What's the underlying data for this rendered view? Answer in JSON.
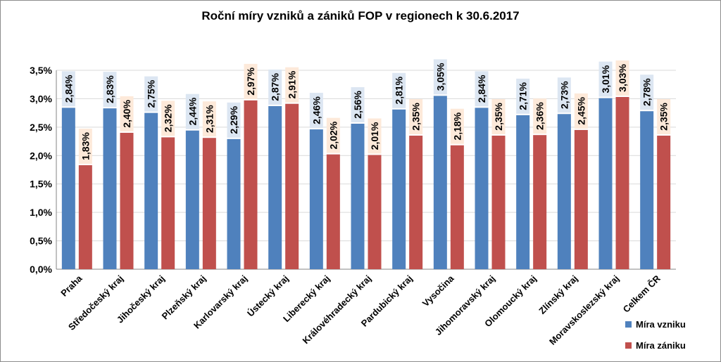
{
  "chart_data": {
    "type": "bar",
    "title": "Roční míry vzniků a zániků FOP v regionech k 30.6.2017",
    "categories": [
      "Praha",
      "Středočeský kraj",
      "Jihočeský kraj",
      "Plzeňský kraj",
      "Karlovarský kraj",
      "Ústecký kraj",
      "Liberecký kraj",
      "Královéhradecký kraj",
      "Pardubický kraj",
      "Vysočina",
      "Jihomoravský kraj",
      "Olomoucký kraj",
      "Zlínský kraj",
      "Moravskoslezský kraj",
      "Celkem ČR"
    ],
    "series": [
      {
        "name": "Míra vzniku",
        "color": "#4f81bd",
        "label_bg": "#dce6f2",
        "values": [
          2.84,
          2.83,
          2.75,
          2.44,
          2.29,
          2.87,
          2.46,
          2.56,
          2.81,
          3.05,
          2.84,
          2.71,
          2.73,
          3.01,
          2.78
        ],
        "labels": [
          "2,84%",
          "2,83%",
          "2,75%",
          "2,44%",
          "2,29%",
          "2,87%",
          "2,46%",
          "2,56%",
          "2,81%",
          "3,05%",
          "2,84%",
          "2,71%",
          "2,73%",
          "3,01%",
          "2,78%"
        ]
      },
      {
        "name": "Míra zániku",
        "color": "#c0504d",
        "label_bg": "#fde9d9",
        "values": [
          1.83,
          2.4,
          2.32,
          2.31,
          2.97,
          2.91,
          2.02,
          2.01,
          2.35,
          2.18,
          2.35,
          2.36,
          2.45,
          3.03,
          2.35
        ],
        "labels": [
          "1,83%",
          "2,40%",
          "2,32%",
          "2,31%",
          "2,97%",
          "2,91%",
          "2,02%",
          "2,01%",
          "2,35%",
          "2,18%",
          "2,35%",
          "2,36%",
          "2,45%",
          "3,03%",
          "2,35%"
        ]
      }
    ],
    "ylim": [
      0,
      3.5
    ],
    "yticks": [
      0,
      0.5,
      1.0,
      1.5,
      2.0,
      2.5,
      3.0,
      3.5
    ],
    "ytick_labels": [
      "0,0%",
      "0,5%",
      "1,0%",
      "1,5%",
      "2,0%",
      "2,5%",
      "3,0%",
      "3,5%"
    ],
    "grid": true,
    "legend_position": "bottom-right"
  }
}
